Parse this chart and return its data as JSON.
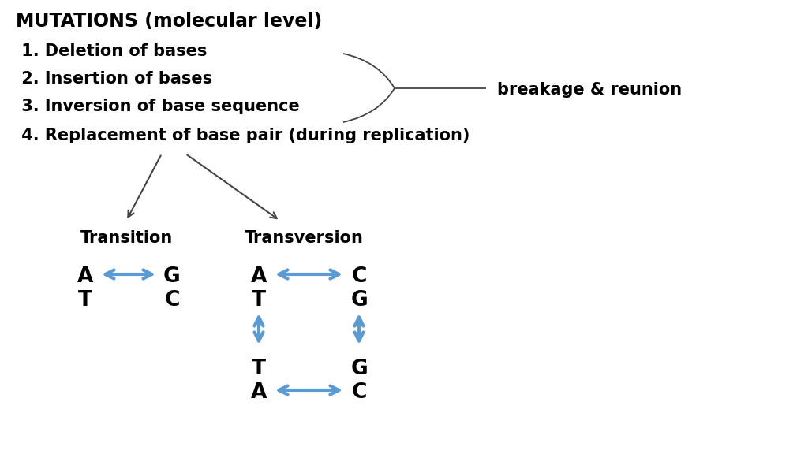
{
  "title": "MUTATIONS (molecular level)",
  "items": [
    " 1. Deletion of bases",
    " 2. Insertion of bases",
    " 3. Inversion of base sequence",
    " 4. Replacement of base pair (during replication)"
  ],
  "bracket_label": "breakage & reunion",
  "transition_label": "Transition",
  "transversion_label": "Transversion",
  "arrow_color": "#5b9bd5",
  "bg_color": "#ffffff",
  "text_color": "#000000",
  "line_color": "#444444",
  "fs_title": 17,
  "fs_item": 15,
  "fs_label": 15,
  "fs_base": 19
}
